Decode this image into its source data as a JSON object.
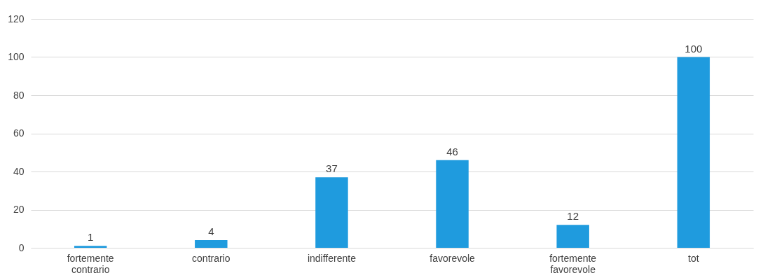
{
  "chart_data": {
    "type": "bar",
    "categories": [
      "fortemente contrario",
      "contrario",
      "indifferente",
      "favorevole",
      "fortemente favorevole",
      "tot"
    ],
    "values": [
      1,
      4,
      37,
      46,
      12,
      100
    ],
    "color": "#1f9bde",
    "ylim": [
      0,
      120
    ],
    "yticks": [
      0,
      20,
      40,
      60,
      80,
      100,
      120
    ],
    "grid": "y",
    "data_labels": true
  }
}
